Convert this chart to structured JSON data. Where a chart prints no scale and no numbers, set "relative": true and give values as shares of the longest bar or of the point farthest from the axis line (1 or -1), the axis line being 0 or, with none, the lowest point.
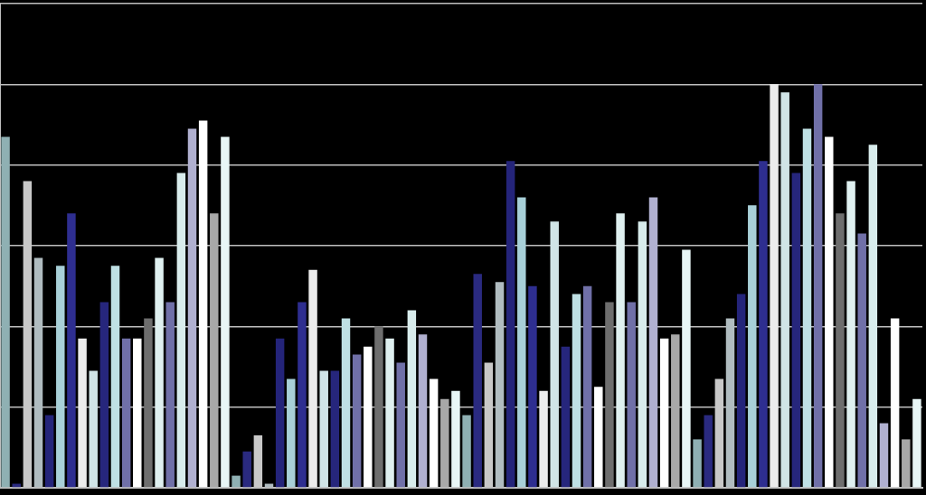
{
  "chart_data": {
    "type": "bar",
    "relative": true,
    "grid": "y",
    "categories": [
      null,
      null,
      null,
      null,
      null,
      null,
      null,
      null,
      null,
      null,
      null,
      null,
      null,
      null,
      null,
      null,
      null,
      null,
      null,
      null,
      null,
      null,
      null,
      null,
      null,
      null,
      null,
      null,
      null,
      null,
      null,
      null,
      null,
      null,
      null,
      null,
      null,
      null,
      null,
      null,
      null,
      null,
      null,
      null,
      null,
      null,
      null,
      null,
      null,
      null,
      null,
      null,
      null,
      null,
      null,
      null,
      null,
      null,
      null,
      null,
      null,
      null,
      null,
      null,
      null,
      null,
      null,
      null,
      null,
      null,
      null,
      null,
      null,
      null,
      null,
      null,
      null,
      null,
      null,
      null,
      null,
      null,
      null,
      null
    ],
    "values": [
      0.87,
      0.01,
      0.76,
      0.57,
      0.18,
      0.55,
      0.68,
      0.37,
      0.29,
      0.46,
      0.55,
      0.37,
      0.37,
      0.42,
      0.57,
      0.46,
      0.78,
      0.89,
      0.91,
      0.68,
      0.87,
      0.03,
      0.09,
      0.13,
      0.01,
      0.37,
      0.27,
      0.46,
      0.54,
      0.29,
      0.29,
      0.42,
      0.33,
      0.35,
      0.4,
      0.37,
      0.31,
      0.44,
      0.38,
      0.27,
      0.22,
      0.24,
      0.18,
      0.53,
      0.31,
      0.51,
      0.81,
      0.72,
      0.5,
      0.24,
      0.66,
      0.35,
      0.48,
      0.5,
      0.25,
      0.46,
      0.68,
      0.46,
      0.66,
      0.72,
      0.37,
      0.38,
      0.59,
      0.12,
      0.18,
      0.27,
      0.42,
      0.48,
      0.7,
      0.81,
      1,
      0.98,
      0.78,
      0.89,
      1,
      0.87,
      0.68,
      0.76,
      0.63,
      0.85,
      0.16,
      0.42,
      0.12,
      0.22
    ],
    "colors": [
      "#8fb0b3",
      "#2a2a80",
      "#c8c8c8",
      "#b0bcc0",
      "#24247a",
      "#a8d0d8",
      "#2e2e90",
      "#ececec",
      "#d0e4e6",
      "#26267c",
      "#bfe0e4",
      "#7070a8",
      "#ffffff",
      "#6e6e6e",
      "#dff0f0",
      "#7070a8",
      "#d8ecec",
      "#b0b0d0",
      "#ffffff",
      "#a8a8a8",
      "#e8f6f6",
      "#8fb0b3",
      "#2a2a80",
      "#c8c8c8",
      "#b0bcc0",
      "#24247a",
      "#a8d0d8",
      "#2e2e90",
      "#ececec",
      "#d0e4e6",
      "#26267c",
      "#bfe0e4",
      "#7070a8",
      "#ffffff",
      "#6e6e6e",
      "#dff0f0",
      "#7070a8",
      "#d8ecec",
      "#b0b0d0",
      "#ffffff",
      "#a8a8a8",
      "#e8f6f6",
      "#8fb0b3",
      "#2a2a80",
      "#c8c8c8",
      "#b0bcc0",
      "#24247a",
      "#a8d0d8",
      "#2e2e90",
      "#ececec",
      "#d0e4e6",
      "#26267c",
      "#bfe0e4",
      "#7070a8",
      "#ffffff",
      "#6e6e6e",
      "#dff0f0",
      "#7070a8",
      "#d8ecec",
      "#b0b0d0",
      "#ffffff",
      "#a8a8a8",
      "#e8f6f6",
      "#8fb0b3",
      "#2a2a80",
      "#c8c8c8",
      "#b0bcc0",
      "#24247a",
      "#a8d0d8",
      "#2e2e90",
      "#ececec",
      "#d0e4e6",
      "#26267c",
      "#bfe0e4",
      "#7070a8",
      "#ffffff",
      "#6e6e6e",
      "#dff0f0",
      "#7070a8",
      "#d8ecec",
      "#b0b0d0",
      "#ffffff",
      "#a8a8a8",
      "#e8f6f6"
    ]
  }
}
